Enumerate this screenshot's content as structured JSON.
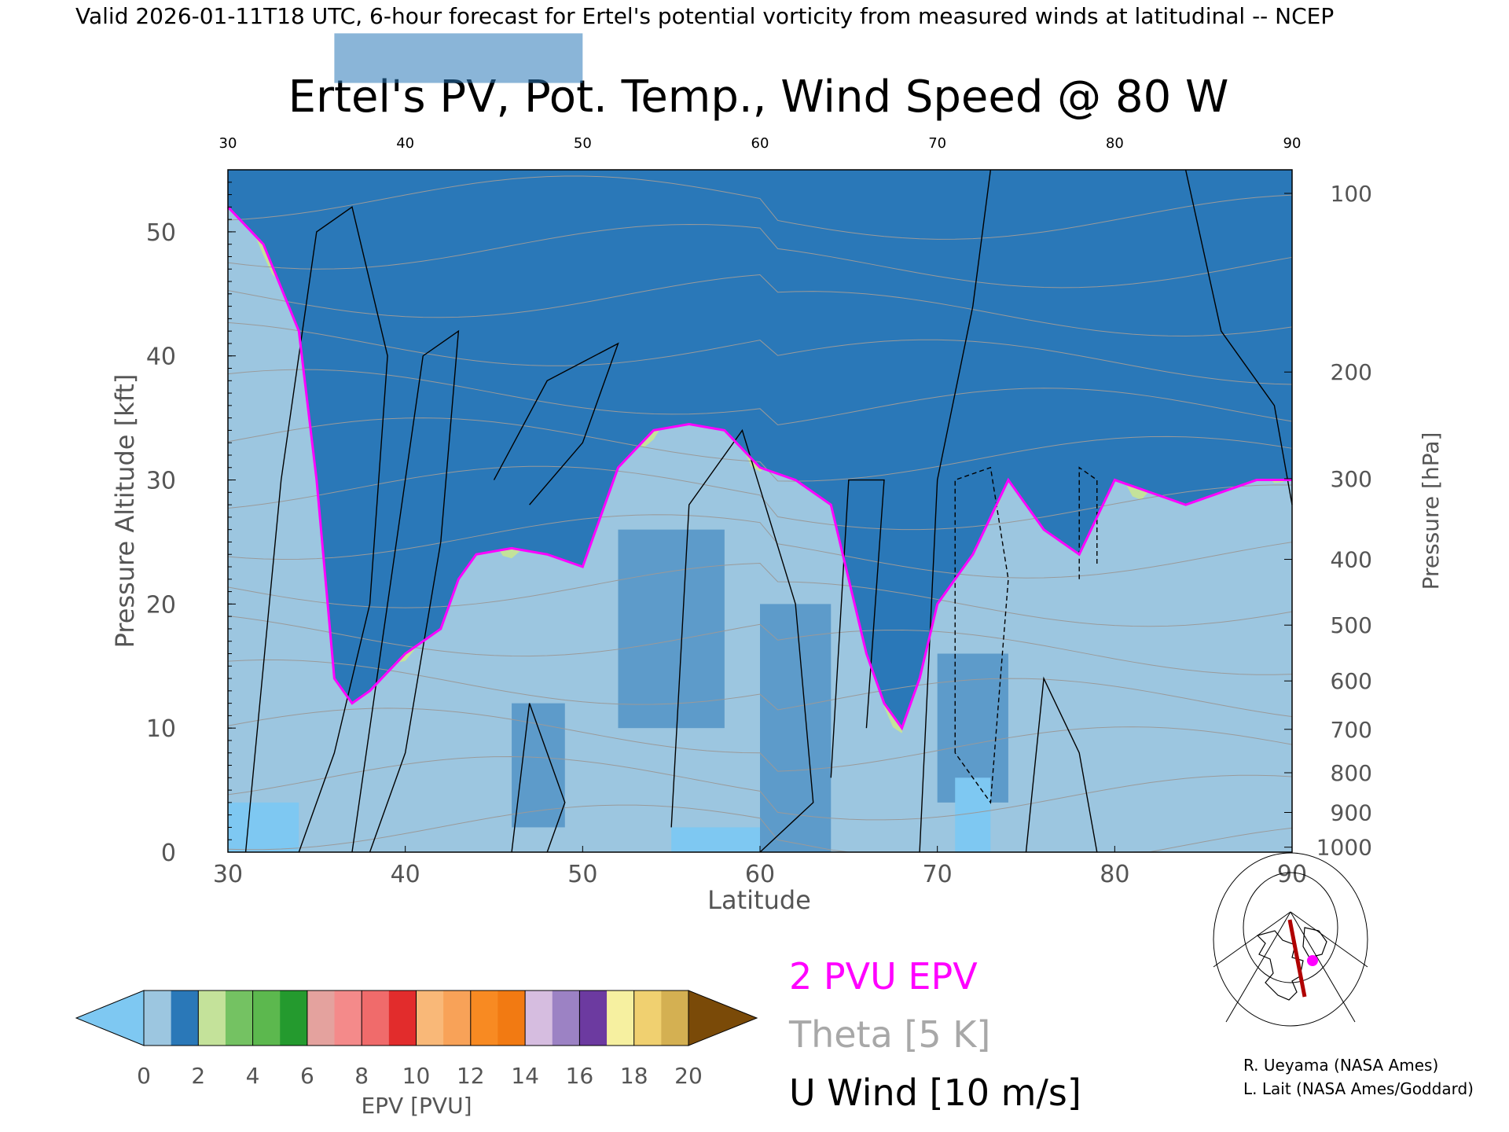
{
  "header": {
    "valid_line": "Valid 2026-01-11T18 UTC, 6-hour forecast for Ertel's potential vorticity from measured winds at latitudinal -- NCEP"
  },
  "chart_data": {
    "type": "heatmap",
    "title": "Ertel's PV, Pot. Temp., Wind Speed @ 80 W",
    "xlabel": "Latitude",
    "ylabel": "Pressure Altitude [kft]",
    "ylabel_right": "Pressure [hPa]",
    "xlim": [
      30,
      90
    ],
    "ylim": [
      0,
      55
    ],
    "x_ticks": [
      "30",
      "40",
      "50",
      "60",
      "70",
      "80",
      "90"
    ],
    "x_ticks_top": [
      "30",
      "40",
      "50",
      "60",
      "70",
      "80",
      "90"
    ],
    "y_ticks": [
      "0",
      "10",
      "20",
      "30",
      "40",
      "50"
    ],
    "pressure_ticks": [
      {
        "label": "100",
        "alt_kft": 53.1
      },
      {
        "label": "200",
        "alt_kft": 38.7
      },
      {
        "label": "300",
        "alt_kft": 30.1
      },
      {
        "label": "400",
        "alt_kft": 23.6
      },
      {
        "label": "500",
        "alt_kft": 18.3
      },
      {
        "label": "600",
        "alt_kft": 13.8
      },
      {
        "label": "700",
        "alt_kft": 9.9
      },
      {
        "label": "800",
        "alt_kft": 6.4
      },
      {
        "label": "900",
        "alt_kft": 3.2
      },
      {
        "label": "1000",
        "alt_kft": 0.4
      }
    ],
    "grid": false,
    "tropopause_2pvu_kft": {
      "lat": [
        30,
        32,
        34,
        35,
        36,
        37,
        38,
        40,
        42,
        43,
        44,
        46,
        48,
        50,
        52,
        54,
        56,
        58,
        60,
        62,
        64,
        65,
        66,
        67,
        68,
        69,
        70,
        71,
        72,
        74,
        76,
        78,
        80,
        82,
        84,
        86,
        88,
        90
      ],
      "alt": [
        52,
        49,
        42,
        30,
        14,
        12,
        13,
        16,
        18,
        22,
        24,
        24.5,
        24,
        23,
        31,
        34,
        34.5,
        34,
        31,
        30,
        28,
        22,
        16,
        12,
        10,
        14,
        20,
        22,
        24,
        30,
        26,
        24,
        30,
        29,
        28,
        29,
        30,
        30
      ]
    },
    "epv_colorbar": {
      "label": "EPV [PVU]",
      "ticks": [
        "0",
        "2",
        "4",
        "6",
        "8",
        "10",
        "12",
        "14",
        "16",
        "18",
        "20"
      ],
      "bins": [
        {
          "range": "<0",
          "color": "#7ec8f2"
        },
        {
          "range": "0-1",
          "color": "#9cc6e0"
        },
        {
          "range": "1-2",
          "color": "#2a78b8"
        },
        {
          "range": "2-3",
          "color": "#c4e29a"
        },
        {
          "range": "3-4",
          "color": "#74c262"
        },
        {
          "range": "4-5",
          "color": "#5cb84e"
        },
        {
          "range": "5-6",
          "color": "#249a2e"
        },
        {
          "range": "6-7",
          "color": "#e4a29e"
        },
        {
          "range": "7-8",
          "color": "#f48a8a"
        },
        {
          "range": "8-9",
          "color": "#f06b6b"
        },
        {
          "range": "9-10",
          "color": "#e22c2c"
        },
        {
          "range": "10-11",
          "color": "#f9b878"
        },
        {
          "range": "11-12",
          "color": "#f8a258"
        },
        {
          "range": "12-13",
          "color": "#f88a22"
        },
        {
          "range": "13-14",
          "color": "#f27a12"
        },
        {
          "range": "14-15",
          "color": "#d6bde0"
        },
        {
          "range": "15-16",
          "color": "#9c82c4"
        },
        {
          "range": "16-17",
          "color": "#6c3aa0"
        },
        {
          "range": "17-18",
          "color": "#f6f0a0"
        },
        {
          "range": "18-19",
          "color": "#f0d070"
        },
        {
          "range": "19-20",
          "color": "#d4b052"
        },
        {
          "range": ">20",
          "color": "#7a4a08"
        }
      ]
    },
    "legend": [
      {
        "label": "2 PVU EPV",
        "color": "#ff00ff"
      },
      {
        "label": "Theta [5 K]",
        "color": "#a8a8a8"
      },
      {
        "label": "U Wind [10 m/s]",
        "color": "#000000"
      }
    ],
    "credits": [
      "R. Ueyama (NASA Ames)",
      "L. Lait (NASA Ames/Goddard)"
    ]
  }
}
